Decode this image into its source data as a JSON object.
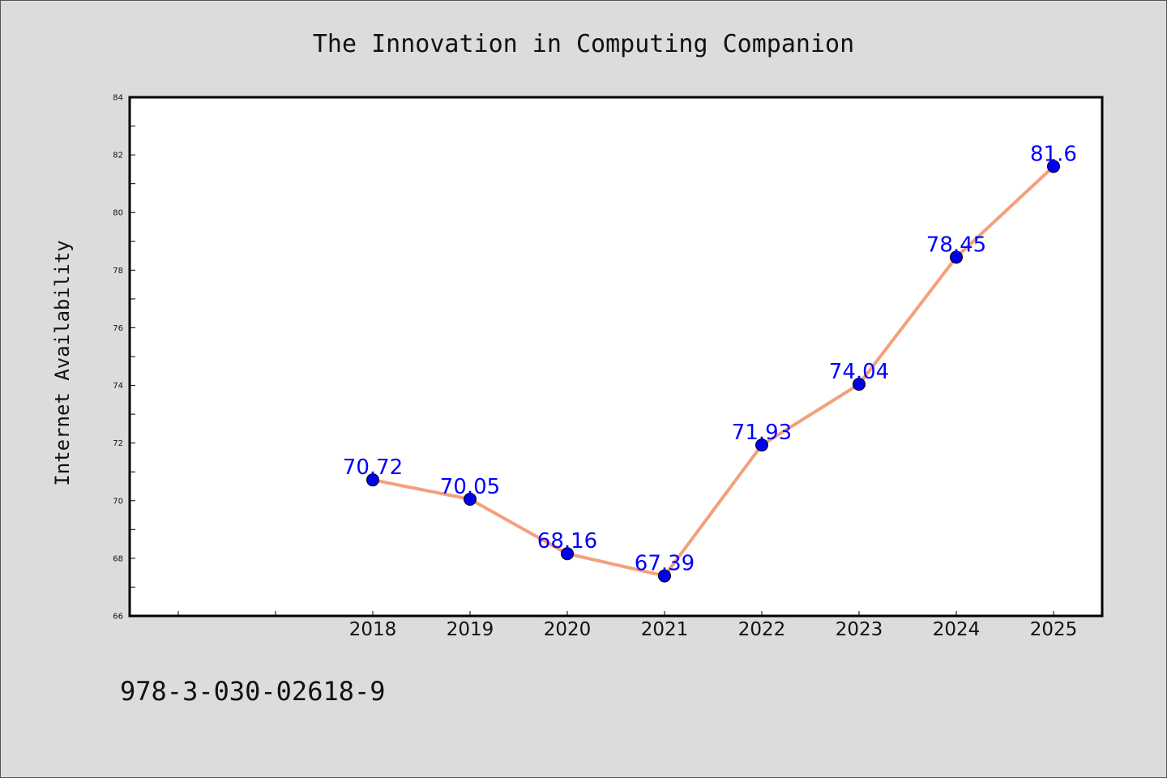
{
  "chart_data": {
    "type": "line",
    "title": "The Innovation in Computing Companion",
    "xlabel": "",
    "ylabel": "Internet Availability",
    "categories": [
      "2018",
      "2019",
      "2020",
      "2021",
      "2022",
      "2023",
      "2024",
      "2025"
    ],
    "series": [
      {
        "values": [
          70.72,
          70.05,
          68.16,
          67.39,
          71.93,
          74.04,
          78.45,
          81.6
        ]
      }
    ],
    "data_labels": [
      "70.72",
      "70.05",
      "68.16",
      "67.39",
      "71.93",
      "74.04",
      "78.45",
      "81.6"
    ],
    "ylim": [
      66,
      84
    ],
    "yticks": [
      "66",
      "68",
      "70",
      "72",
      "74",
      "76",
      "78",
      "80",
      "82",
      "84"
    ],
    "grid": false,
    "legend": "none",
    "colors": {
      "line": "#f4a07c",
      "marker": "#0000ee",
      "label": "#0000ff",
      "background": "#dcdcdc",
      "plot_background": "#ffffff"
    }
  },
  "footer": {
    "isbn": "978-3-030-02618-9"
  }
}
